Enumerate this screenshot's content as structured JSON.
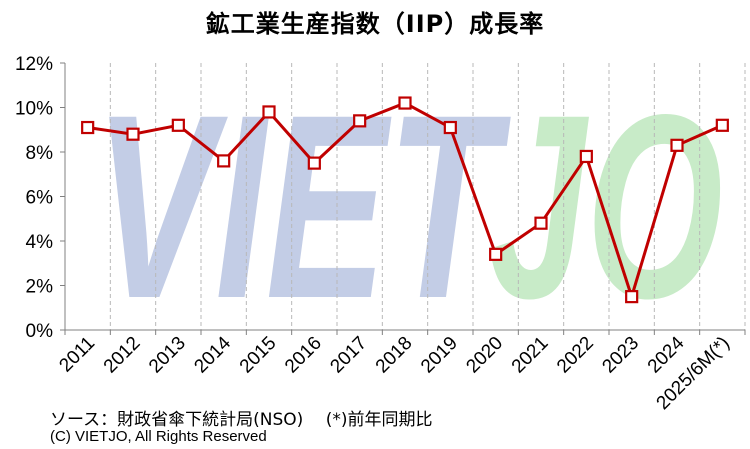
{
  "chart_data": {
    "type": "line",
    "title": "鉱工業生産指数（IIP）成長率",
    "categories": [
      "2011",
      "2012",
      "2013",
      "2014",
      "2015",
      "2016",
      "2017",
      "2018",
      "2019",
      "2020",
      "2021",
      "2022",
      "2023",
      "2024",
      "2025/6M(*)"
    ],
    "series": [
      {
        "values": [
          9.1,
          8.8,
          9.2,
          7.6,
          9.8,
          7.5,
          9.4,
          10.2,
          9.1,
          3.4,
          4.8,
          7.8,
          1.5,
          8.3,
          9.2
        ]
      }
    ],
    "y_ticks": [
      "0%",
      "2%",
      "4%",
      "6%",
      "8%",
      "10%",
      "12%"
    ],
    "ylim": [
      0,
      12
    ],
    "grid": "vertical dashed",
    "legend": "none",
    "line_color": "#C00000",
    "marker_fill": "#ffffff"
  },
  "watermark": {
    "left_text": "VIET",
    "right_text": "JO",
    "left_color": "#C3CDE6",
    "right_color": "#C8EBC8"
  },
  "footer": {
    "source": "ソース：財政省傘下統計局(NSO)　 (*)前年同期比",
    "copyright": "(C) VIETJO, All Rights Reserved"
  }
}
